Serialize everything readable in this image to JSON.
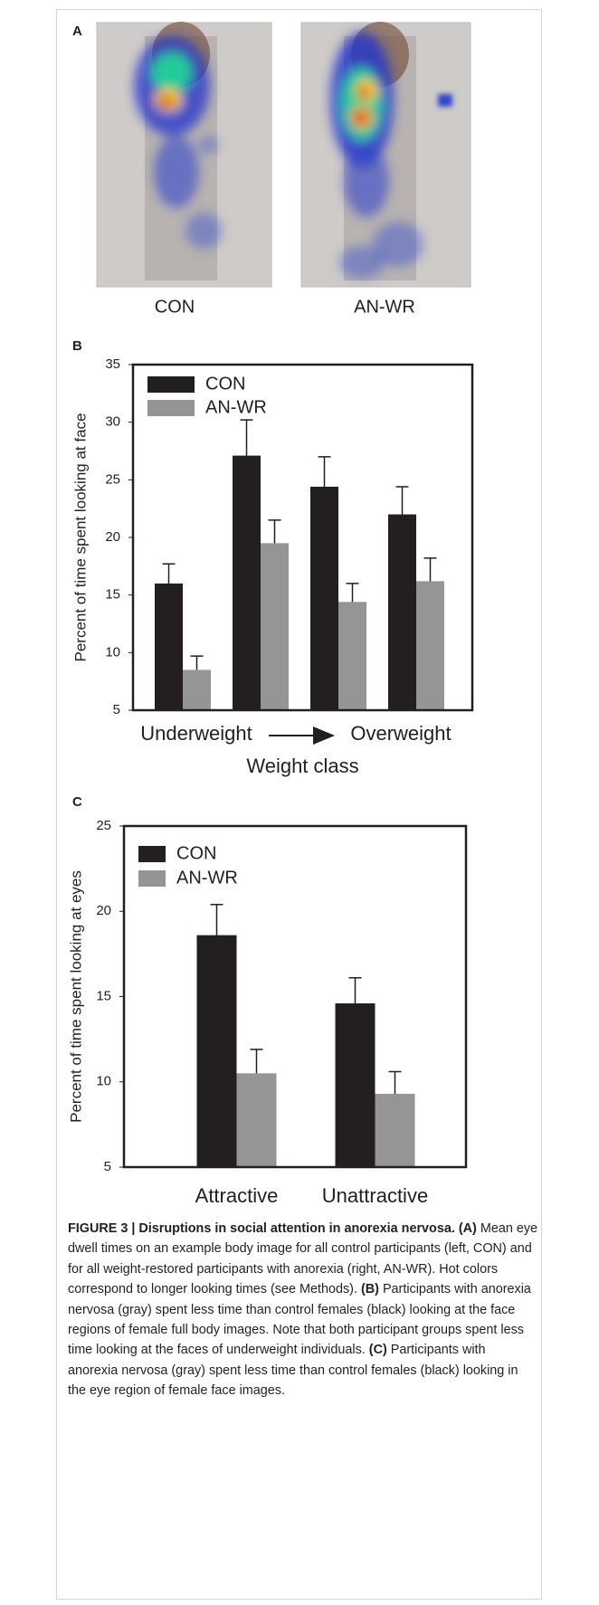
{
  "panel_a": {
    "label": "A",
    "captions": [
      "CON",
      "AN-WR"
    ]
  },
  "chart_data": [
    {
      "type": "bar",
      "panel": "B",
      "ylabel": "Percent of time spent looking at face",
      "xlabel": "Weight class",
      "x_annotations": [
        "Underweight",
        "Overweight"
      ],
      "categories": [
        null,
        null,
        null,
        null
      ],
      "series": [
        {
          "name": "CON",
          "color": "#231f20",
          "values": [
            16.0,
            27.1,
            24.4,
            22.0
          ],
          "errors": [
            1.7,
            3.1,
            2.6,
            2.4
          ]
        },
        {
          "name": "AN-WR",
          "color": "#959595",
          "values": [
            8.5,
            19.5,
            14.4,
            16.2
          ],
          "errors": [
            1.2,
            2.0,
            1.6,
            2.0
          ]
        }
      ],
      "ylim": [
        5,
        35
      ],
      "yticks": [
        5,
        10,
        15,
        20,
        25,
        30,
        35
      ],
      "legend": "upper left"
    },
    {
      "type": "bar",
      "panel": "C",
      "ylabel": "Percent of time spent looking at eyes",
      "categories": [
        "Attractive",
        "Unattractive"
      ],
      "series": [
        {
          "name": "CON",
          "color": "#231f20",
          "values": [
            18.6,
            14.6
          ],
          "errors": [
            1.8,
            1.5
          ]
        },
        {
          "name": "AN-WR",
          "color": "#959595",
          "values": [
            10.5,
            9.3
          ],
          "errors": [
            1.4,
            1.3
          ]
        }
      ],
      "ylim": [
        5,
        25
      ],
      "yticks": [
        5,
        10,
        15,
        20,
        25
      ],
      "legend": "upper left"
    }
  ],
  "caption": {
    "title": "FIGURE 3 | Disruptions in social attention in anorexia nervosa.",
    "parts": [
      {
        "tag": "(A)",
        "text": "Mean eye dwell times on an example body image for all control participants (left, CON) and for all weight-restored participants with anorexia (right, AN-WR). Hot colors correspond to longer looking times (see Methods)."
      },
      {
        "tag": "(B)",
        "text": "Participants with anorexia nervosa (gray) spent less time than control females (black) looking at the face regions of female full body images. Note that both participant groups spent less time looking at the faces of underweight individuals."
      },
      {
        "tag": "(C)",
        "text": "Participants with anorexia nervosa (gray) spent less time than control females (black) looking in the eye region of female face images."
      }
    ]
  }
}
